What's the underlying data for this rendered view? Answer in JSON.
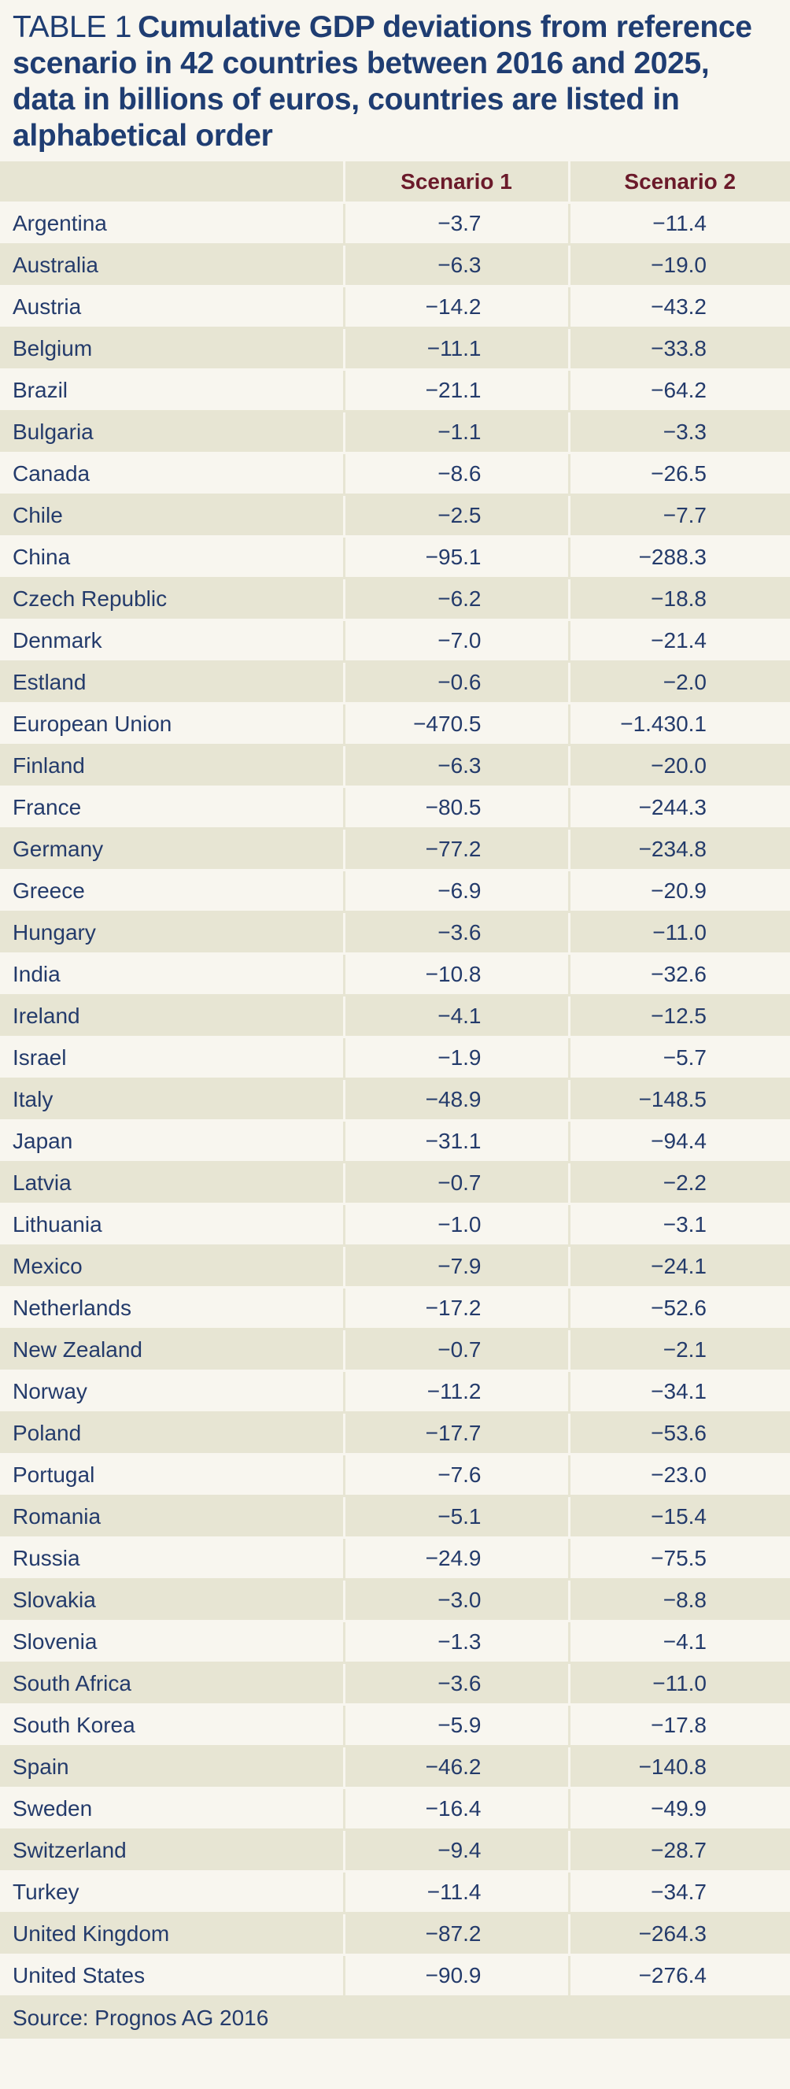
{
  "title": {
    "prefix": "TABLE 1",
    "text": "Cumulative GDP deviations from reference scenario in 42 countries between 2016 and 2025, data in billions of euros, countries are listed in alphabetical order"
  },
  "source": "Source: Prognos AG 2016",
  "colors": {
    "title": "#1f3d72",
    "header_text": "#6b1a2a",
    "body_text": "#243b6b",
    "band_light": "#f8f6ef",
    "band_dark": "#e7e5d3"
  },
  "chart_data": {
    "type": "table",
    "columns": [
      "",
      "Scenario 1",
      "Scenario 2"
    ],
    "rows": [
      {
        "country": "Argentina",
        "s1": "−3.7",
        "s2": "−11.4"
      },
      {
        "country": "Australia",
        "s1": "−6.3",
        "s2": "−19.0"
      },
      {
        "country": "Austria",
        "s1": "−14.2",
        "s2": "−43.2"
      },
      {
        "country": "Belgium",
        "s1": "−11.1",
        "s2": "−33.8"
      },
      {
        "country": "Brazil",
        "s1": "−21.1",
        "s2": "−64.2"
      },
      {
        "country": "Bulgaria",
        "s1": "−1.1",
        "s2": "−3.3"
      },
      {
        "country": "Canada",
        "s1": "−8.6",
        "s2": "−26.5"
      },
      {
        "country": "Chile",
        "s1": "−2.5",
        "s2": "−7.7"
      },
      {
        "country": "China",
        "s1": "−95.1",
        "s2": "−288.3"
      },
      {
        "country": "Czech Republic",
        "s1": "−6.2",
        "s2": "−18.8"
      },
      {
        "country": "Denmark",
        "s1": "−7.0",
        "s2": "−21.4"
      },
      {
        "country": "Estland",
        "s1": "−0.6",
        "s2": "−2.0"
      },
      {
        "country": "European Union",
        "s1": "−470.5",
        "s2": "−1.430.1"
      },
      {
        "country": "Finland",
        "s1": "−6.3",
        "s2": "−20.0"
      },
      {
        "country": "France",
        "s1": "−80.5",
        "s2": "−244.3"
      },
      {
        "country": "Germany",
        "s1": "−77.2",
        "s2": "−234.8"
      },
      {
        "country": "Greece",
        "s1": "−6.9",
        "s2": "−20.9"
      },
      {
        "country": "Hungary",
        "s1": "−3.6",
        "s2": "−11.0"
      },
      {
        "country": "India",
        "s1": "−10.8",
        "s2": "−32.6"
      },
      {
        "country": "Ireland",
        "s1": "−4.1",
        "s2": "−12.5"
      },
      {
        "country": "Israel",
        "s1": "−1.9",
        "s2": "−5.7"
      },
      {
        "country": "Italy",
        "s1": "−48.9",
        "s2": "−148.5"
      },
      {
        "country": "Japan",
        "s1": "−31.1",
        "s2": "−94.4"
      },
      {
        "country": "Latvia",
        "s1": "−0.7",
        "s2": "−2.2"
      },
      {
        "country": "Lithuania",
        "s1": "−1.0",
        "s2": "−3.1"
      },
      {
        "country": "Mexico",
        "s1": "−7.9",
        "s2": "−24.1"
      },
      {
        "country": "Netherlands",
        "s1": "−17.2",
        "s2": "−52.6"
      },
      {
        "country": "New Zealand",
        "s1": "−0.7",
        "s2": "−2.1"
      },
      {
        "country": "Norway",
        "s1": "−11.2",
        "s2": "−34.1"
      },
      {
        "country": "Poland",
        "s1": "−17.7",
        "s2": "−53.6"
      },
      {
        "country": "Portugal",
        "s1": "−7.6",
        "s2": "−23.0"
      },
      {
        "country": "Romania",
        "s1": "−5.1",
        "s2": "−15.4"
      },
      {
        "country": "Russia",
        "s1": "−24.9",
        "s2": "−75.5"
      },
      {
        "country": "Slovakia",
        "s1": "−3.0",
        "s2": "−8.8"
      },
      {
        "country": "Slovenia",
        "s1": "−1.3",
        "s2": "−4.1"
      },
      {
        "country": "South Africa",
        "s1": "−3.6",
        "s2": "−11.0"
      },
      {
        "country": "South Korea",
        "s1": "−5.9",
        "s2": "−17.8"
      },
      {
        "country": "Spain",
        "s1": "−46.2",
        "s2": "−140.8"
      },
      {
        "country": "Sweden",
        "s1": "−16.4",
        "s2": "−49.9"
      },
      {
        "country": "Switzerland",
        "s1": "−9.4",
        "s2": "−28.7"
      },
      {
        "country": "Turkey",
        "s1": "−11.4",
        "s2": "−34.7"
      },
      {
        "country": "United Kingdom",
        "s1": "−87.2",
        "s2": "−264.3"
      },
      {
        "country": "United States",
        "s1": "−90.9",
        "s2": "−276.4"
      }
    ]
  }
}
